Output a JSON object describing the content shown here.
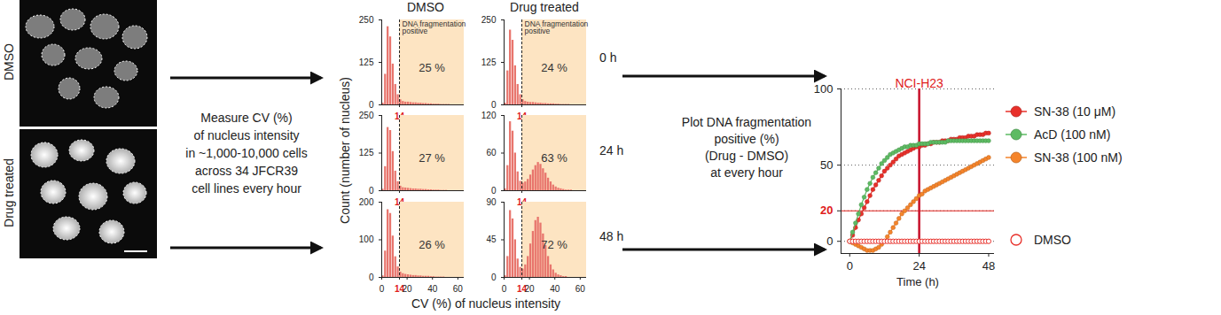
{
  "chart_data": [
    {
      "type": "histogram",
      "bins": [
        0,
        2,
        4,
        6,
        8,
        10,
        12,
        14,
        16,
        18,
        20,
        22,
        24,
        26,
        28,
        30,
        32,
        34,
        36,
        38,
        40,
        42,
        44,
        46,
        48,
        50,
        52,
        54,
        56,
        58,
        60,
        62,
        64
      ],
      "counts": [
        5,
        90,
        230,
        200,
        120,
        60,
        30,
        15,
        10,
        8,
        8,
        7,
        6,
        6,
        5,
        5,
        4,
        4,
        3,
        3,
        2,
        2,
        2,
        1,
        1,
        1,
        1,
        0,
        0,
        0,
        0,
        0
      ],
      "color": "#e8756d",
      "xlim": [
        0,
        65
      ],
      "xticks": [
        14
      ],
      "ylim": [
        0,
        250
      ],
      "yticks": [
        0,
        125,
        250
      ],
      "threshold": 14,
      "positive_label": "DNA fragmentation\npositive",
      "positive_percent": 25,
      "positive_percent_label": "25 %"
    },
    {
      "type": "histogram",
      "bins": [
        0,
        2,
        4,
        6,
        8,
        10,
        12,
        14,
        16,
        18,
        20,
        22,
        24,
        26,
        28,
        30,
        32,
        34,
        36,
        38,
        40,
        42,
        44,
        46,
        48,
        50,
        52,
        54,
        56,
        58,
        60,
        62,
        64
      ],
      "counts": [
        5,
        100,
        220,
        190,
        115,
        60,
        30,
        15,
        10,
        8,
        7,
        7,
        6,
        5,
        5,
        4,
        4,
        3,
        3,
        3,
        2,
        2,
        1,
        1,
        1,
        1,
        0,
        0,
        0,
        0,
        0,
        0
      ],
      "color": "#e8756d",
      "xlim": [
        0,
        65
      ],
      "xticks": [
        14
      ],
      "ylim": [
        0,
        250
      ],
      "yticks": [
        0,
        125,
        250
      ],
      "threshold": 14,
      "positive_label": "DNA fragmentation\npositive",
      "positive_percent": 24,
      "positive_percent_label": "24 %"
    },
    {
      "type": "histogram",
      "bins": [
        0,
        2,
        4,
        6,
        8,
        10,
        12,
        14,
        16,
        18,
        20,
        22,
        24,
        26,
        28,
        30,
        32,
        34,
        36,
        38,
        40,
        42,
        44,
        46,
        48,
        50,
        52,
        54,
        56,
        58,
        60,
        62,
        64
      ],
      "counts": [
        5,
        80,
        210,
        200,
        130,
        65,
        30,
        15,
        10,
        9,
        8,
        7,
        6,
        6,
        5,
        5,
        4,
        4,
        3,
        3,
        2,
        2,
        2,
        1,
        1,
        1,
        0,
        0,
        0,
        0,
        0,
        0
      ],
      "color": "#e8756d",
      "xlim": [
        0,
        65
      ],
      "xticks": [
        14
      ],
      "ylim": [
        0,
        250
      ],
      "yticks": [
        0,
        125,
        250
      ],
      "threshold": 14,
      "positive_percent": 27,
      "positive_percent_label": "27 %"
    },
    {
      "type": "histogram",
      "bins": [
        0,
        2,
        4,
        6,
        8,
        10,
        12,
        14,
        16,
        18,
        20,
        22,
        24,
        26,
        28,
        30,
        32,
        34,
        36,
        38,
        40,
        42,
        44,
        46,
        48,
        50,
        52,
        54,
        56,
        58,
        60,
        62,
        64
      ],
      "counts": [
        3,
        40,
        110,
        95,
        60,
        30,
        15,
        12,
        14,
        18,
        25,
        33,
        40,
        45,
        42,
        35,
        28,
        20,
        14,
        9,
        6,
        4,
        3,
        2,
        1,
        1,
        1,
        0,
        0,
        0,
        0,
        0
      ],
      "color": "#e8756d",
      "xlim": [
        0,
        65
      ],
      "xticks": [
        14
      ],
      "ylim": [
        0,
        120
      ],
      "yticks": [
        0,
        60,
        120
      ],
      "threshold": 14,
      "positive_percent": 63,
      "positive_percent_label": "63 %"
    },
    {
      "type": "histogram",
      "bins": [
        0,
        2,
        4,
        6,
        8,
        10,
        12,
        14,
        16,
        18,
        20,
        22,
        24,
        26,
        28,
        30,
        32,
        34,
        36,
        38,
        40,
        42,
        44,
        46,
        48,
        50,
        52,
        54,
        56,
        58,
        60,
        62,
        64
      ],
      "counts": [
        4,
        70,
        180,
        170,
        110,
        55,
        28,
        14,
        10,
        8,
        7,
        6,
        5,
        5,
        4,
        4,
        3,
        3,
        3,
        2,
        2,
        1,
        1,
        1,
        1,
        0,
        0,
        0,
        0,
        0,
        0,
        0
      ],
      "color": "#e8756d",
      "xlim": [
        0,
        65
      ],
      "xticks": [
        0,
        14,
        20,
        40,
        60
      ],
      "ylim": [
        0,
        200
      ],
      "yticks": [
        0,
        100,
        200
      ],
      "threshold": 14,
      "positive_percent": 26,
      "positive_percent_label": "26 %"
    },
    {
      "type": "histogram",
      "bins": [
        0,
        2,
        4,
        6,
        8,
        10,
        12,
        14,
        16,
        18,
        20,
        22,
        24,
        26,
        28,
        30,
        32,
        34,
        36,
        38,
        40,
        42,
        44,
        46,
        48,
        50,
        52,
        54,
        56,
        58,
        60,
        62,
        64
      ],
      "counts": [
        2,
        25,
        80,
        70,
        45,
        22,
        12,
        10,
        15,
        25,
        40,
        55,
        68,
        72,
        65,
        52,
        38,
        25,
        15,
        9,
        5,
        3,
        2,
        1,
        1,
        0,
        0,
        0,
        0,
        0,
        0,
        0
      ],
      "color": "#e8756d",
      "xlim": [
        0,
        65
      ],
      "xticks": [
        0,
        14,
        20,
        40,
        60
      ],
      "ylim": [
        0,
        90
      ],
      "yticks": [
        0,
        45,
        90
      ],
      "threshold": 14,
      "positive_percent": 72,
      "positive_percent_label": "72 %"
    },
    {
      "type": "line",
      "title": "NCI-H23",
      "xlabel": "Time (h)",
      "x": [
        0,
        1,
        2,
        3,
        4,
        5,
        6,
        7,
        8,
        9,
        10,
        11,
        12,
        13,
        14,
        15,
        16,
        17,
        18,
        19,
        20,
        21,
        22,
        23,
        24,
        25,
        26,
        27,
        28,
        29,
        30,
        31,
        32,
        33,
        34,
        35,
        36,
        37,
        38,
        39,
        40,
        41,
        42,
        43,
        44,
        45,
        46,
        47,
        48
      ],
      "series": [
        {
          "name": "SN-38 (10 μM)",
          "color": "#e8302a",
          "marker": "circle",
          "values": [
            0,
            4,
            9,
            14,
            18,
            22,
            26,
            30,
            34,
            37,
            40,
            43,
            46,
            48,
            50,
            52,
            54,
            56,
            57,
            58,
            59,
            60,
            61,
            62,
            62,
            63,
            63,
            64,
            64,
            65,
            65,
            65,
            66,
            66,
            66,
            67,
            67,
            67,
            68,
            68,
            68,
            69,
            69,
            69,
            70,
            70,
            70,
            71,
            71
          ]
        },
        {
          "name": "AcD (100 nM)",
          "color": "#5dbb63",
          "marker": "circle",
          "values": [
            0,
            6,
            12,
            18,
            24,
            29,
            34,
            38,
            42,
            45,
            48,
            51,
            53,
            55,
            57,
            58,
            59,
            60,
            61,
            62,
            62,
            63,
            63,
            63,
            64,
            64,
            64,
            64,
            65,
            65,
            65,
            65,
            65,
            65,
            66,
            66,
            66,
            66,
            66,
            66,
            66,
            66,
            66,
            66,
            66,
            66,
            66,
            66,
            66
          ]
        },
        {
          "name": "SN-38 (100 nM)",
          "color": "#f5842b",
          "marker": "circle",
          "values": [
            0,
            -1,
            -2,
            -3,
            -4,
            -5,
            -6,
            -6,
            -6,
            -5,
            -4,
            -2,
            0,
            3,
            6,
            9,
            12,
            15,
            18,
            20,
            22,
            24,
            26,
            28,
            30,
            31,
            33,
            34,
            35,
            36,
            37,
            38,
            39,
            40,
            41,
            42,
            43,
            44,
            45,
            46,
            47,
            48,
            49,
            50,
            51,
            52,
            53,
            54,
            55
          ]
        },
        {
          "name": "DMSO",
          "color": "#e8302a",
          "marker": "hollow",
          "values": [
            0,
            0,
            0,
            0,
            0,
            0,
            0,
            0,
            0,
            0,
            0,
            0,
            0,
            0,
            0,
            0,
            0,
            0,
            0,
            0,
            0,
            0,
            0,
            0,
            0,
            0,
            0,
            0,
            0,
            0,
            0,
            0,
            0,
            0,
            0,
            0,
            0,
            0,
            0,
            0,
            0,
            0,
            0,
            0,
            0,
            0,
            0,
            0,
            0
          ]
        }
      ],
      "xlim": [
        -3,
        50
      ],
      "xticks": [
        0,
        24,
        48
      ],
      "ylim": [
        -8,
        100
      ],
      "yticks": [
        0,
        20,
        50,
        100
      ],
      "grid": true,
      "legend": "right",
      "vline": 24,
      "hline": 20
    }
  ],
  "diagram": {
    "image_labels": [
      "DMSO",
      "Drug treated"
    ],
    "step1_text": [
      "Measure CV (%)",
      "of nucleus intensity",
      "in ~1,000-10,000 cells",
      "across 34 JFCR39",
      "cell lines every hour"
    ],
    "step2_text": [
      "Plot DNA fragmentation",
      "positive (%)",
      "(Drug - DMSO)",
      "at every hour"
    ],
    "histogram_columns": [
      "DMSO",
      "Drug treated"
    ],
    "histogram_rows": [
      "0 h",
      "24 h",
      "48 h"
    ],
    "histogram_xlabel": "CV (%) of nucleus intensity",
    "histogram_ylabel": "Count (number of nucleus)"
  }
}
